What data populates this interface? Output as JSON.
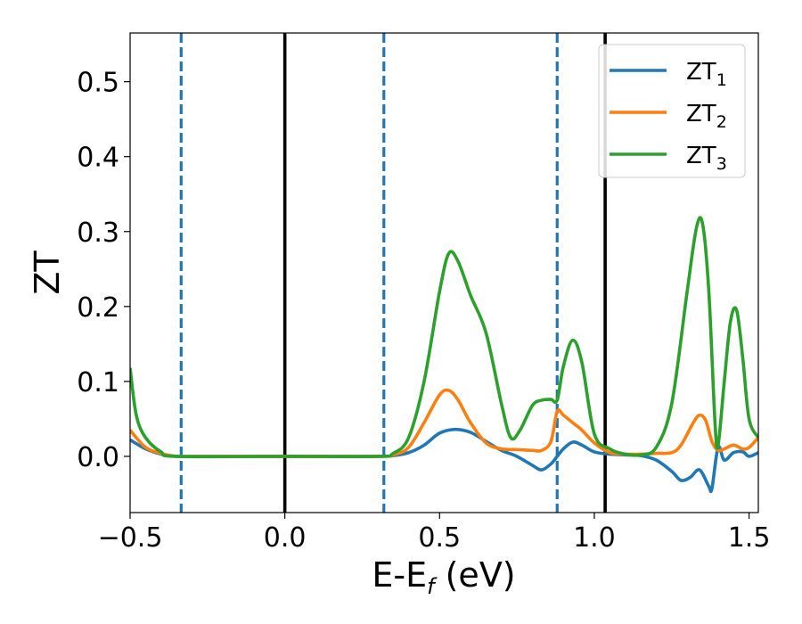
{
  "chart_data": {
    "type": "line",
    "xlabel": "E-E",
    "xlabel_subscript": "f",
    "xlabel_unit": " (eV)",
    "ylabel": "ZT",
    "xlim": [
      -0.5,
      1.53
    ],
    "ylim": [
      -0.075,
      0.565
    ],
    "xticks": [
      -0.5,
      0.0,
      0.5,
      1.0,
      1.5
    ],
    "xtick_labels": [
      "−0.5",
      "0.0",
      "0.5",
      "1.0",
      "1.5"
    ],
    "yticks": [
      0.0,
      0.1,
      0.2,
      0.3,
      0.4,
      0.5
    ],
    "ytick_labels": [
      "0.0",
      "0.1",
      "0.2",
      "0.3",
      "0.4",
      "0.5"
    ],
    "grid": false,
    "legend_position": "top-right",
    "vlines": [
      {
        "x": -0.335,
        "style": "dashed",
        "color": "#1f77b4"
      },
      {
        "x": 0.0,
        "style": "solid",
        "color": "#000000"
      },
      {
        "x": 0.32,
        "style": "dashed",
        "color": "#1f77b4"
      },
      {
        "x": 0.88,
        "style": "dashed",
        "color": "#1f77b4"
      },
      {
        "x": 1.035,
        "style": "solid",
        "color": "#000000"
      }
    ],
    "series": [
      {
        "name": "ZT",
        "subscript": "1",
        "color": "#1f77b4",
        "points": [
          [
            -0.5,
            0.022
          ],
          [
            -0.45,
            0.01
          ],
          [
            -0.4,
            0.003
          ],
          [
            -0.35,
            0.0
          ],
          [
            -0.3,
            0.0
          ],
          [
            0.0,
            0.0
          ],
          [
            0.3,
            0.0
          ],
          [
            0.35,
            0.001
          ],
          [
            0.4,
            0.005
          ],
          [
            0.45,
            0.015
          ],
          [
            0.5,
            0.031
          ],
          [
            0.55,
            0.036
          ],
          [
            0.6,
            0.032
          ],
          [
            0.65,
            0.02
          ],
          [
            0.7,
            0.008
          ],
          [
            0.75,
            0.0
          ],
          [
            0.8,
            -0.012
          ],
          [
            0.83,
            -0.018
          ],
          [
            0.86,
            -0.01
          ],
          [
            0.88,
            0.0
          ],
          [
            0.9,
            0.01
          ],
          [
            0.93,
            0.019
          ],
          [
            0.96,
            0.015
          ],
          [
            1.0,
            0.006
          ],
          [
            1.05,
            0.003
          ],
          [
            1.1,
            0.002
          ],
          [
            1.15,
            0.001
          ],
          [
            1.2,
            -0.005
          ],
          [
            1.25,
            -0.02
          ],
          [
            1.28,
            -0.032
          ],
          [
            1.31,
            -0.028
          ],
          [
            1.34,
            -0.018
          ],
          [
            1.37,
            -0.04
          ],
          [
            1.38,
            -0.043
          ],
          [
            1.4,
            0.012
          ],
          [
            1.42,
            -0.005
          ],
          [
            1.45,
            0.005
          ],
          [
            1.48,
            0.006
          ],
          [
            1.5,
            0.0
          ],
          [
            1.53,
            0.005
          ]
        ]
      },
      {
        "name": "ZT",
        "subscript": "2",
        "color": "#ff7f0e",
        "points": [
          [
            -0.5,
            0.035
          ],
          [
            -0.45,
            0.012
          ],
          [
            -0.4,
            0.004
          ],
          [
            -0.35,
            0.0
          ],
          [
            -0.3,
            0.0
          ],
          [
            0.0,
            0.0
          ],
          [
            0.3,
            0.0
          ],
          [
            0.35,
            0.002
          ],
          [
            0.4,
            0.012
          ],
          [
            0.45,
            0.045
          ],
          [
            0.5,
            0.082
          ],
          [
            0.53,
            0.088
          ],
          [
            0.56,
            0.075
          ],
          [
            0.6,
            0.045
          ],
          [
            0.65,
            0.018
          ],
          [
            0.7,
            0.01
          ],
          [
            0.75,
            0.009
          ],
          [
            0.8,
            0.008
          ],
          [
            0.83,
            0.008
          ],
          [
            0.86,
            0.02
          ],
          [
            0.88,
            0.06
          ],
          [
            0.9,
            0.055
          ],
          [
            0.93,
            0.045
          ],
          [
            0.96,
            0.035
          ],
          [
            1.0,
            0.018
          ],
          [
            1.05,
            0.005
          ],
          [
            1.1,
            0.003
          ],
          [
            1.15,
            0.003
          ],
          [
            1.2,
            0.004
          ],
          [
            1.25,
            0.005
          ],
          [
            1.28,
            0.015
          ],
          [
            1.32,
            0.045
          ],
          [
            1.34,
            0.055
          ],
          [
            1.36,
            0.048
          ],
          [
            1.38,
            0.02
          ],
          [
            1.4,
            0.008
          ],
          [
            1.42,
            0.01
          ],
          [
            1.45,
            0.015
          ],
          [
            1.48,
            0.01
          ],
          [
            1.5,
            0.012
          ],
          [
            1.53,
            0.025
          ]
        ]
      },
      {
        "name": "ZT",
        "subscript": "3",
        "color": "#2ca02c",
        "points": [
          [
            -0.5,
            0.118
          ],
          [
            -0.48,
            0.055
          ],
          [
            -0.45,
            0.025
          ],
          [
            -0.4,
            0.006
          ],
          [
            -0.35,
            0.0
          ],
          [
            0.0,
            0.0
          ],
          [
            0.3,
            0.0
          ],
          [
            0.35,
            0.004
          ],
          [
            0.4,
            0.025
          ],
          [
            0.45,
            0.1
          ],
          [
            0.5,
            0.22
          ],
          [
            0.53,
            0.271
          ],
          [
            0.56,
            0.26
          ],
          [
            0.6,
            0.215
          ],
          [
            0.65,
            0.165
          ],
          [
            0.7,
            0.07
          ],
          [
            0.73,
            0.025
          ],
          [
            0.76,
            0.035
          ],
          [
            0.8,
            0.068
          ],
          [
            0.83,
            0.075
          ],
          [
            0.86,
            0.076
          ],
          [
            0.88,
            0.075
          ],
          [
            0.9,
            0.12
          ],
          [
            0.93,
            0.155
          ],
          [
            0.96,
            0.125
          ],
          [
            1.0,
            0.03
          ],
          [
            1.05,
            0.01
          ],
          [
            1.1,
            0.003
          ],
          [
            1.15,
            0.002
          ],
          [
            1.2,
            0.012
          ],
          [
            1.25,
            0.07
          ],
          [
            1.3,
            0.22
          ],
          [
            1.33,
            0.305
          ],
          [
            1.35,
            0.31
          ],
          [
            1.37,
            0.22
          ],
          [
            1.39,
            0.045
          ],
          [
            1.4,
            0.015
          ],
          [
            1.42,
            0.1
          ],
          [
            1.44,
            0.18
          ],
          [
            1.46,
            0.195
          ],
          [
            1.48,
            0.13
          ],
          [
            1.5,
            0.05
          ],
          [
            1.53,
            0.025
          ]
        ]
      }
    ]
  }
}
